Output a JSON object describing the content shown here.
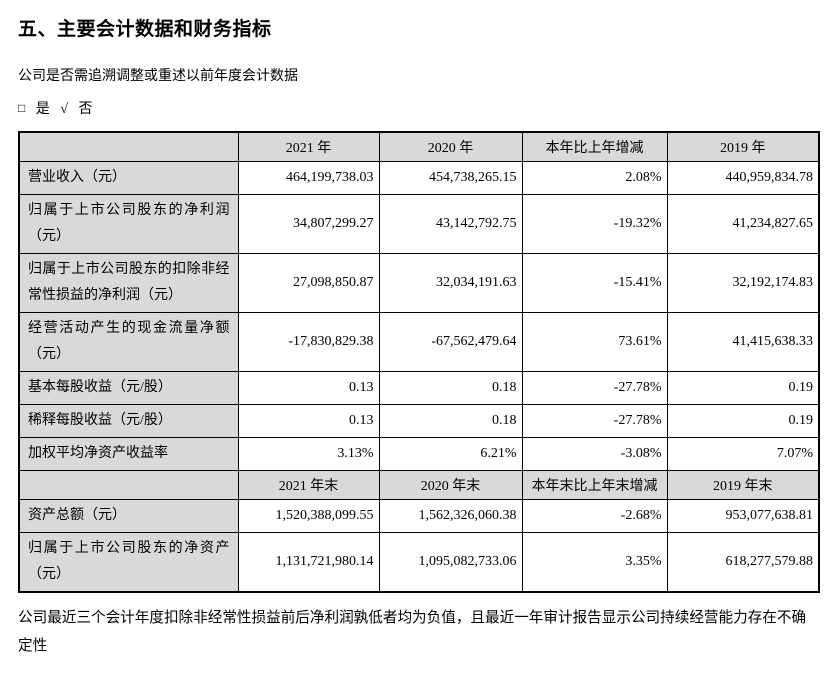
{
  "page": {
    "title": "五、主要会计数据和财务指标",
    "question": "公司是否需追溯调整或重述以前年度会计数据",
    "check": {
      "unchecked_box": "□",
      "yes_label": "是",
      "check_mark": "√",
      "no_label": "否"
    },
    "footnote": "公司最近三个会计年度扣除非经常性损益前后净利润孰低者均为负值，且最近一年审计报告显示公司持续经营能力存在不确定性"
  },
  "table": {
    "annual": {
      "header": [
        "",
        "2021 年",
        "2020 年",
        "本年比上年增减",
        "2019 年"
      ],
      "rows": [
        {
          "label": "营业收入（元）",
          "values": [
            "464,199,738.03",
            "454,738,265.15",
            "2.08%",
            "440,959,834.78"
          ]
        },
        {
          "label": "归属于上市公司股东的净利润（元）",
          "values": [
            "34,807,299.27",
            "43,142,792.75",
            "-19.32%",
            "41,234,827.65"
          ]
        },
        {
          "label": "归属于上市公司股东的扣除非经常性损益的净利润（元）",
          "values": [
            "27,098,850.87",
            "32,034,191.63",
            "-15.41%",
            "32,192,174.83"
          ]
        },
        {
          "label": "经营活动产生的现金流量净额（元）",
          "values": [
            "-17,830,829.38",
            "-67,562,479.64",
            "73.61%",
            "41,415,638.33"
          ]
        },
        {
          "label": "基本每股收益（元/股）",
          "values": [
            "0.13",
            "0.18",
            "-27.78%",
            "0.19"
          ]
        },
        {
          "label": "稀释每股收益（元/股）",
          "values": [
            "0.13",
            "0.18",
            "-27.78%",
            "0.19"
          ]
        },
        {
          "label": "加权平均净资产收益率",
          "values": [
            "3.13%",
            "6.21%",
            "-3.08%",
            "7.07%"
          ]
        }
      ]
    },
    "yearend": {
      "header": [
        "",
        "2021 年末",
        "2020 年末",
        "本年末比上年末增减",
        "2019 年末"
      ],
      "rows": [
        {
          "label": "资产总额（元）",
          "values": [
            "1,520,388,099.55",
            "1,562,326,060.38",
            "-2.68%",
            "953,077,638.81"
          ]
        },
        {
          "label": "归属于上市公司股东的净资产（元）",
          "values": [
            "1,131,721,980.14",
            "1,095,082,733.06",
            "3.35%",
            "618,277,579.88"
          ]
        }
      ]
    }
  },
  "colors": {
    "header_bg": "#d9d9d9",
    "border": "#000000",
    "text": "#000000"
  }
}
